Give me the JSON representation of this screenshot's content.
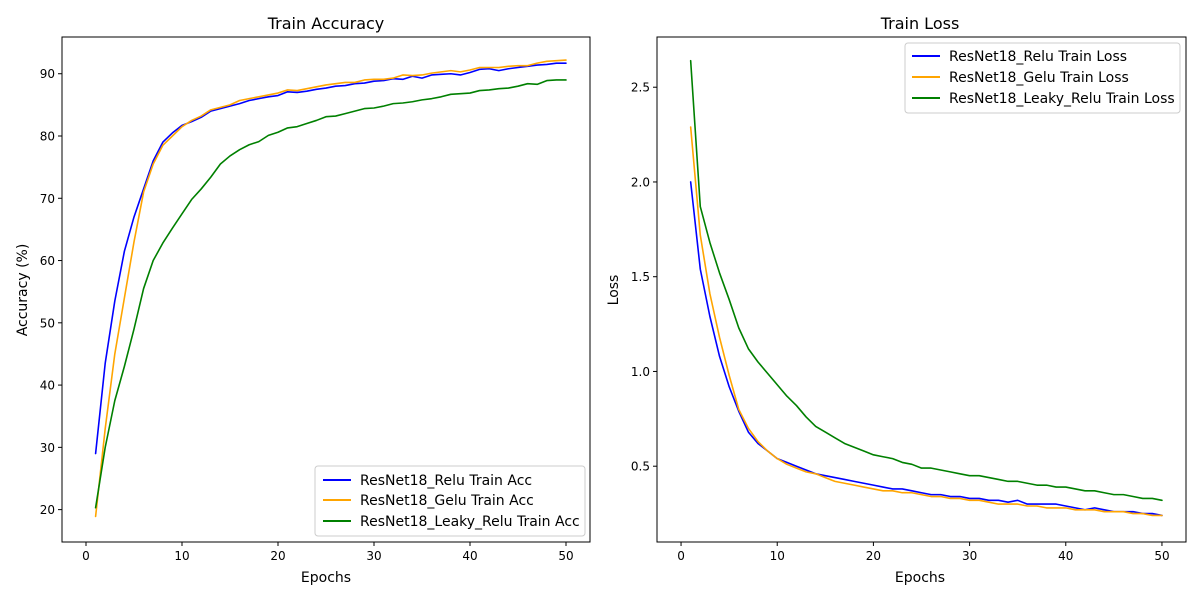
{
  "chart_data": [
    {
      "type": "line",
      "title": "Train Accuracy",
      "xlabel": "Epochs",
      "ylabel": "Accuracy (%)",
      "xlim": [
        -2.5,
        52.5
      ],
      "ylim": [
        14.8,
        95.9
      ],
      "xticks": [
        0,
        10,
        20,
        30,
        40,
        50
      ],
      "yticks": [
        20,
        30,
        40,
        50,
        60,
        70,
        80,
        90
      ],
      "grid": false,
      "legend_position": "lower-right",
      "x": [
        1,
        2,
        3,
        4,
        5,
        6,
        7,
        8,
        9,
        10,
        11,
        12,
        13,
        14,
        15,
        16,
        17,
        18,
        19,
        20,
        21,
        22,
        23,
        24,
        25,
        26,
        27,
        28,
        29,
        30,
        31,
        32,
        33,
        34,
        35,
        36,
        37,
        38,
        39,
        40,
        41,
        42,
        43,
        44,
        45,
        46,
        47,
        48,
        49,
        50
      ],
      "series": [
        {
          "name": "ResNet18_Relu Train Acc",
          "color": "#0000ff",
          "values": [
            29.0,
            43.5,
            53.5,
            61.5,
            67.0,
            71.5,
            76.0,
            79.0,
            80.5,
            81.7,
            82.3,
            83.0,
            84.0,
            84.4,
            84.8,
            85.2,
            85.7,
            86.0,
            86.3,
            86.5,
            87.1,
            87.0,
            87.2,
            87.5,
            87.7,
            88.0,
            88.1,
            88.4,
            88.5,
            88.8,
            88.9,
            89.2,
            89.1,
            89.6,
            89.3,
            89.8,
            89.9,
            90.0,
            89.8,
            90.2,
            90.7,
            90.8,
            90.5,
            90.8,
            91.0,
            91.2,
            91.4,
            91.5,
            91.7,
            91.7
          ]
        },
        {
          "name": "ResNet18_Gelu Train Acc",
          "color": "#ffa500",
          "values": [
            18.9,
            33.0,
            45.0,
            54.0,
            63.0,
            71.0,
            75.5,
            78.5,
            80.0,
            81.5,
            82.5,
            83.2,
            84.2,
            84.6,
            85.0,
            85.7,
            86.0,
            86.3,
            86.6,
            86.9,
            87.4,
            87.3,
            87.6,
            87.9,
            88.2,
            88.4,
            88.6,
            88.6,
            89.0,
            89.1,
            89.1,
            89.3,
            89.8,
            89.7,
            89.8,
            90.1,
            90.3,
            90.5,
            90.3,
            90.6,
            91.0,
            91.0,
            91.0,
            91.2,
            91.3,
            91.3,
            91.7,
            92.0,
            92.1,
            92.2
          ]
        },
        {
          "name": "ResNet18_Leaky_Relu Train Acc",
          "color": "#008000",
          "values": [
            20.3,
            30.0,
            37.5,
            43.0,
            49.0,
            55.5,
            60.0,
            62.8,
            65.2,
            67.5,
            69.8,
            71.5,
            73.4,
            75.5,
            76.8,
            77.8,
            78.6,
            79.1,
            80.1,
            80.6,
            81.3,
            81.5,
            82.0,
            82.5,
            83.1,
            83.2,
            83.6,
            84.0,
            84.4,
            84.5,
            84.8,
            85.2,
            85.3,
            85.5,
            85.8,
            86.0,
            86.3,
            86.7,
            86.8,
            86.9,
            87.3,
            87.4,
            87.6,
            87.7,
            88.0,
            88.4,
            88.3,
            88.9,
            89.0,
            89.0
          ]
        }
      ]
    },
    {
      "type": "line",
      "title": "Train Loss",
      "xlabel": "Epochs",
      "ylabel": "Loss",
      "xlim": [
        -2.5,
        52.5
      ],
      "ylim": [
        0.1,
        2.765
      ],
      "xticks": [
        0,
        10,
        20,
        30,
        40,
        50
      ],
      "yticks": [
        0.5,
        1.0,
        1.5,
        2.0,
        2.5
      ],
      "grid": false,
      "legend_position": "upper-right",
      "x": [
        1,
        2,
        3,
        4,
        5,
        6,
        7,
        8,
        9,
        10,
        11,
        12,
        13,
        14,
        15,
        16,
        17,
        18,
        19,
        20,
        21,
        22,
        23,
        24,
        25,
        26,
        27,
        28,
        29,
        30,
        31,
        32,
        33,
        34,
        35,
        36,
        37,
        38,
        39,
        40,
        41,
        42,
        43,
        44,
        45,
        46,
        47,
        48,
        49,
        50
      ],
      "series": [
        {
          "name": "ResNet18_Relu Train Loss",
          "color": "#0000ff",
          "values": [
            2.0,
            1.54,
            1.29,
            1.08,
            0.92,
            0.79,
            0.68,
            0.62,
            0.58,
            0.54,
            0.52,
            0.5,
            0.48,
            0.46,
            0.45,
            0.44,
            0.43,
            0.42,
            0.41,
            0.4,
            0.39,
            0.38,
            0.38,
            0.37,
            0.36,
            0.35,
            0.35,
            0.34,
            0.34,
            0.33,
            0.33,
            0.32,
            0.32,
            0.31,
            0.32,
            0.3,
            0.3,
            0.3,
            0.3,
            0.29,
            0.28,
            0.27,
            0.28,
            0.27,
            0.26,
            0.26,
            0.26,
            0.25,
            0.25,
            0.24
          ]
        },
        {
          "name": "ResNet18_Gelu Train Loss",
          "color": "#ffa500",
          "values": [
            2.29,
            1.72,
            1.41,
            1.18,
            0.98,
            0.8,
            0.7,
            0.63,
            0.58,
            0.54,
            0.51,
            0.49,
            0.47,
            0.46,
            0.44,
            0.42,
            0.41,
            0.4,
            0.39,
            0.38,
            0.37,
            0.37,
            0.36,
            0.36,
            0.35,
            0.34,
            0.34,
            0.33,
            0.33,
            0.32,
            0.32,
            0.31,
            0.3,
            0.3,
            0.3,
            0.29,
            0.29,
            0.28,
            0.28,
            0.28,
            0.27,
            0.27,
            0.27,
            0.26,
            0.26,
            0.26,
            0.25,
            0.25,
            0.24,
            0.24
          ]
        },
        {
          "name": "ResNet18_Leaky_Relu Train Loss",
          "color": "#008000",
          "values": [
            2.64,
            1.87,
            1.68,
            1.52,
            1.38,
            1.23,
            1.12,
            1.05,
            0.99,
            0.93,
            0.87,
            0.82,
            0.76,
            0.71,
            0.68,
            0.65,
            0.62,
            0.6,
            0.58,
            0.56,
            0.55,
            0.54,
            0.52,
            0.51,
            0.49,
            0.49,
            0.48,
            0.47,
            0.46,
            0.45,
            0.45,
            0.44,
            0.43,
            0.42,
            0.42,
            0.41,
            0.4,
            0.4,
            0.39,
            0.39,
            0.38,
            0.37,
            0.37,
            0.36,
            0.35,
            0.35,
            0.34,
            0.33,
            0.33,
            0.32
          ]
        }
      ]
    }
  ]
}
